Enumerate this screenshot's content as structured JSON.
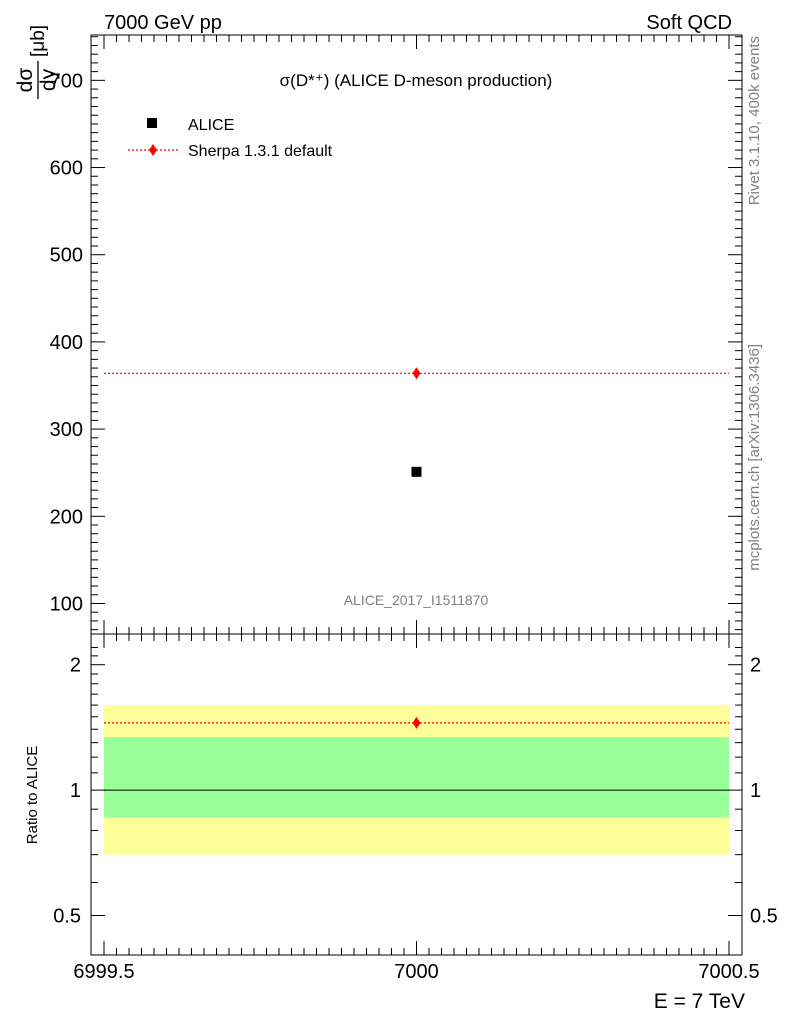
{
  "header": {
    "left": "7000 GeV pp",
    "right": "Soft QCD"
  },
  "side_labels": {
    "rivet": "Rivet 3.1.10,  400k events",
    "mcplots": "mcplots.cern.ch [arXiv:1306.3436]"
  },
  "chart_data": [
    {
      "type": "scatter",
      "title": "σ(D*⁺) (ALICE D-meson production)",
      "ylabel": "dσ/dy [μb]",
      "ylabel_num": "dσ",
      "ylabel_den": "dy",
      "ylabel_unit": "[μb]",
      "analysis_label": "ALICE_2017_I1511870",
      "xlim": [
        6999.5,
        7000.5
      ],
      "ylim": [
        65,
        752
      ],
      "yticks": [
        100,
        200,
        300,
        400,
        500,
        600,
        700
      ],
      "series": [
        {
          "name": "ALICE",
          "marker": "square",
          "color": "#000000",
          "x": [
            7000
          ],
          "y": [
            251
          ],
          "xerr": [
            0.5
          ]
        },
        {
          "name": "Sherpa 1.3.1 default",
          "marker": "diamond",
          "color": "#ff0000",
          "line": "dotted",
          "x": [
            7000
          ],
          "y": [
            364
          ],
          "xerr": [
            0.5
          ]
        }
      ]
    },
    {
      "type": "scatter",
      "ylabel": "Ratio to ALICE",
      "xlabel": "E = 7 TeV",
      "log_y": true,
      "xlim": [
        6999.5,
        7000.5
      ],
      "ylim": [
        0.402,
        2.37
      ],
      "xticks": [
        "6999.5",
        "7000",
        "7000.5"
      ],
      "yticks": [
        0.5,
        1,
        2
      ],
      "reference_line": 1,
      "bands": [
        {
          "color": "#ffff99",
          "low": 0.7,
          "high": 1.6
        },
        {
          "color": "#99ff99",
          "low": 0.86,
          "high": 1.34
        }
      ],
      "series": [
        {
          "name": "Sherpa 1.3.1 default",
          "marker": "diamond",
          "color": "#ff0000",
          "line": "dotted",
          "x": [
            7000
          ],
          "y": [
            1.45
          ]
        }
      ]
    }
  ]
}
